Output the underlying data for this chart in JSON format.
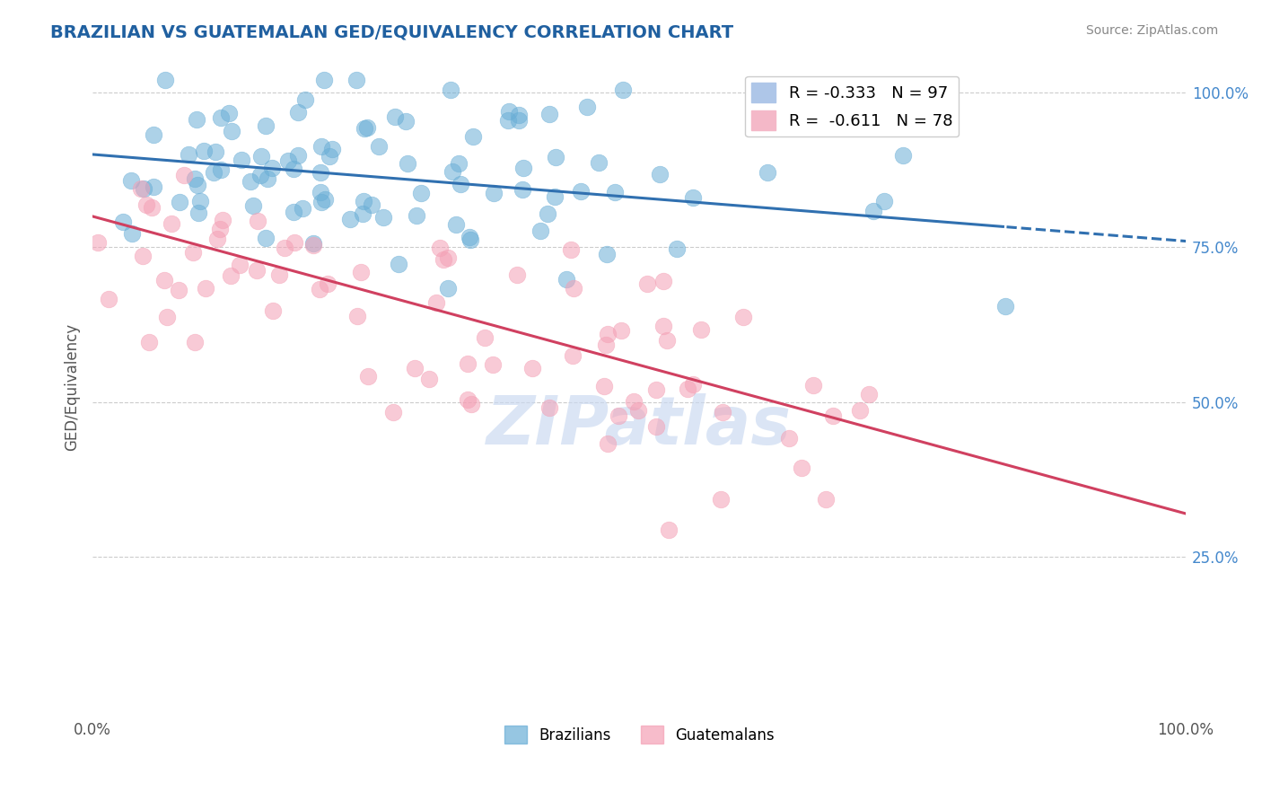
{
  "title": "BRAZILIAN VS GUATEMALAN GED/EQUIVALENCY CORRELATION CHART",
  "source": "Source: ZipAtlas.com",
  "ylabel": "GED/Equivalency",
  "right_ytick_labels": [
    "100.0%",
    "75.0%",
    "50.0%",
    "25.0%"
  ],
  "right_ytick_values": [
    1.0,
    0.75,
    0.5,
    0.25
  ],
  "legend_labels_bottom": [
    "Brazilians",
    "Guatemalans"
  ],
  "blue_color": "#6aaed6",
  "pink_color": "#f4a0b5",
  "blue_line_color": "#3070b0",
  "pink_line_color": "#d04060",
  "background_color": "#ffffff",
  "grid_color": "#cccccc",
  "title_color": "#2060a0",
  "watermark_text": "ZIPatlas",
  "watermark_color": "#c8d8f0",
  "r_blue": -0.333,
  "n_blue": 97,
  "r_pink": -0.611,
  "n_pink": 78,
  "xmin": 0.0,
  "xmax": 1.0,
  "ymin": 0.0,
  "ymax": 1.05,
  "blue_scatter_seed": 42,
  "pink_scatter_seed": 123,
  "blue_intercept": 0.9,
  "blue_slope": -0.14,
  "pink_intercept": 0.8,
  "pink_slope": -0.48,
  "legend_r_blue": "R = -0.333",
  "legend_n_blue": "N = 97",
  "legend_r_pink": "R =  -0.611",
  "legend_n_pink": "N = 78"
}
